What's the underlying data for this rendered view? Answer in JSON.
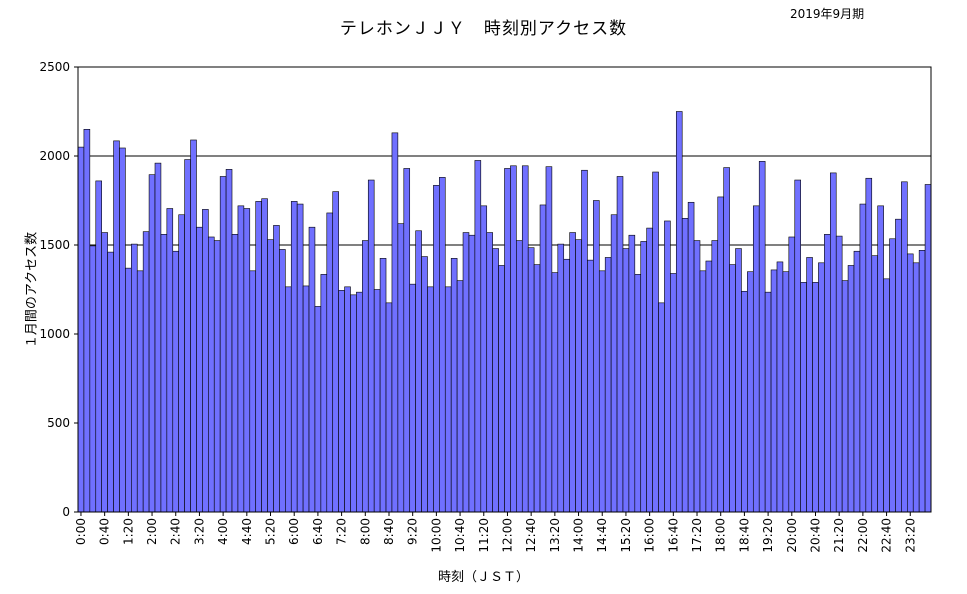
{
  "title": "テレホンＪＪＹ　時刻別アクセス数",
  "period": "2019年9月期",
  "colors": {
    "bar_fill": "#7070ff",
    "bar_stroke": "#000000",
    "gridline": "#000000"
  },
  "chart_data": {
    "type": "bar",
    "xlabel": "時刻（ＪＳＴ）",
    "ylabel": "１月間のアクセス数",
    "ylim": [
      0,
      2500
    ],
    "yticks": [
      0,
      500,
      1000,
      1500,
      2000,
      2500
    ],
    "gridlines": [
      1500,
      2000
    ],
    "interval_minutes": 10,
    "xtick_labels": [
      "0:00",
      "0:40",
      "1:20",
      "2:00",
      "2:40",
      "3:20",
      "4:00",
      "4:40",
      "5:20",
      "6:00",
      "6:40",
      "7:20",
      "8:00",
      "8:40",
      "9:20",
      "10:00",
      "10:40",
      "11:20",
      "12:00",
      "12:40",
      "13:20",
      "14:00",
      "14:40",
      "15:20",
      "16:00",
      "16:40",
      "17:20",
      "18:00",
      "18:40",
      "19:20",
      "20:00",
      "20:40",
      "21:20",
      "22:00",
      "22:40",
      "23:20"
    ],
    "values": [
      2050,
      2150,
      1495,
      1860,
      1570,
      1460,
      2085,
      2045,
      1370,
      1505,
      1355,
      1575,
      1895,
      1960,
      1560,
      1705,
      1465,
      1670,
      1980,
      2090,
      1600,
      1700,
      1545,
      1525,
      1885,
      1925,
      1560,
      1720,
      1705,
      1355,
      1745,
      1760,
      1530,
      1610,
      1475,
      1265,
      1745,
      1730,
      1270,
      1600,
      1155,
      1335,
      1680,
      1800,
      1245,
      1265,
      1220,
      1235,
      1525,
      1865,
      1250,
      1425,
      1175,
      2130,
      1620,
      1930,
      1280,
      1580,
      1435,
      1265,
      1835,
      1880,
      1265,
      1425,
      1300,
      1570,
      1555,
      1975,
      1720,
      1570,
      1480,
      1385,
      1930,
      1945,
      1525,
      1945,
      1485,
      1390,
      1725,
      1940,
      1345,
      1505,
      1420,
      1570,
      1530,
      1920,
      1415,
      1750,
      1355,
      1430,
      1670,
      1885,
      1480,
      1555,
      1335,
      1520,
      1595,
      1910,
      1175,
      1635,
      1340,
      2250,
      1650,
      1740,
      1525,
      1355,
      1410,
      1525,
      1770,
      1935,
      1390,
      1480,
      1240,
      1350,
      1720,
      1970,
      1235,
      1360,
      1405,
      1350,
      1545,
      1865,
      1290,
      1430,
      1290,
      1400,
      1560,
      1905,
      1550,
      1300,
      1385,
      1465,
      1730,
      1875,
      1440,
      1720,
      1310,
      1535,
      1645,
      1855,
      1450,
      1400,
      1470,
      1840
    ]
  }
}
